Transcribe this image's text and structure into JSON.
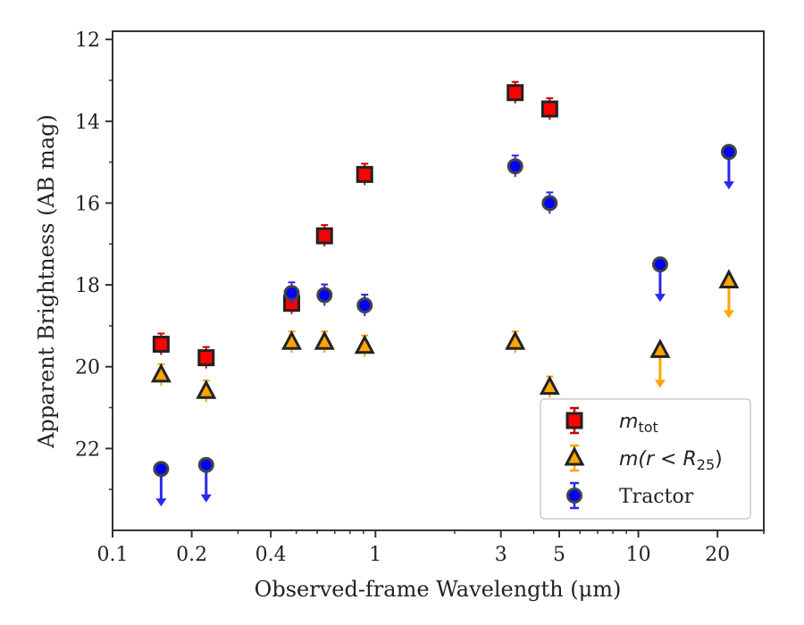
{
  "chart_data": {
    "type": "scatter",
    "xlabel": "Observed-frame Wavelength (μm)",
    "ylabel": "Apparent Brightness (AB mag)",
    "xscale": "log",
    "xlim": [
      0.1,
      30
    ],
    "ylim": [
      24,
      11.8
    ],
    "y_inverted": true,
    "x_ticks": [
      {
        "value": 0.1,
        "label": "0.1"
      },
      {
        "value": 0.2,
        "label": "0.2"
      },
      {
        "value": 0.4,
        "label": "0.4"
      },
      {
        "value": 1,
        "label": "1"
      },
      {
        "value": 3,
        "label": "3"
      },
      {
        "value": 5,
        "label": "5"
      },
      {
        "value": 10,
        "label": "10"
      },
      {
        "value": 20,
        "label": "20"
      }
    ],
    "y_ticks": [
      {
        "value": 12,
        "label": "12"
      },
      {
        "value": 14,
        "label": "14"
      },
      {
        "value": 16,
        "label": "16"
      },
      {
        "value": 18,
        "label": "18"
      },
      {
        "value": 20,
        "label": "20"
      },
      {
        "value": 22,
        "label": "22"
      }
    ],
    "grid": false,
    "legend_position": "lower-right",
    "series": [
      {
        "key": "mtot",
        "legend_main": "m",
        "legend_sub": "tot",
        "marker": "square",
        "face_color": "#ff0000",
        "edge_color": "#222222",
        "errbar_color": "#cc0000",
        "points": [
          {
            "x": 0.153,
            "y": 19.45,
            "upper_limit": false
          },
          {
            "x": 0.227,
            "y": 19.78,
            "upper_limit": false
          },
          {
            "x": 0.48,
            "y": 18.45,
            "upper_limit": false
          },
          {
            "x": 0.64,
            "y": 16.8,
            "upper_limit": false
          },
          {
            "x": 0.91,
            "y": 15.3,
            "upper_limit": false
          },
          {
            "x": 3.4,
            "y": 13.3,
            "upper_limit": false
          },
          {
            "x": 4.6,
            "y": 13.7,
            "upper_limit": false
          }
        ]
      },
      {
        "key": "mr25",
        "legend_text_math": "m(r < R",
        "legend_sub": "25",
        "legend_close": ")",
        "marker": "triangle",
        "face_color": "#ffa500",
        "edge_color": "#222222",
        "errbar_color": "#ffa500",
        "points": [
          {
            "x": 0.153,
            "y": 20.2,
            "upper_limit": false
          },
          {
            "x": 0.227,
            "y": 20.6,
            "upper_limit": false
          },
          {
            "x": 0.48,
            "y": 19.4,
            "upper_limit": false
          },
          {
            "x": 0.64,
            "y": 19.4,
            "upper_limit": false
          },
          {
            "x": 0.91,
            "y": 19.5,
            "upper_limit": false
          },
          {
            "x": 3.4,
            "y": 19.4,
            "upper_limit": false
          },
          {
            "x": 4.6,
            "y": 20.5,
            "upper_limit": false
          },
          {
            "x": 12.1,
            "y": 19.6,
            "upper_limit": true
          },
          {
            "x": 22.1,
            "y": 17.9,
            "upper_limit": true
          }
        ]
      },
      {
        "key": "tractor",
        "legend_text": "Tractor",
        "marker": "circle",
        "face_color": "#0000ff",
        "edge_color": "#444444",
        "errbar_color": "#2a2ae8",
        "points": [
          {
            "x": 0.153,
            "y": 22.5,
            "upper_limit": true
          },
          {
            "x": 0.227,
            "y": 22.4,
            "upper_limit": true
          },
          {
            "x": 0.48,
            "y": 18.2,
            "upper_limit": false
          },
          {
            "x": 0.64,
            "y": 18.25,
            "upper_limit": false
          },
          {
            "x": 0.91,
            "y": 18.5,
            "upper_limit": false
          },
          {
            "x": 3.4,
            "y": 15.1,
            "upper_limit": false
          },
          {
            "x": 4.6,
            "y": 16.0,
            "upper_limit": false
          },
          {
            "x": 12.1,
            "y": 17.5,
            "upper_limit": true
          },
          {
            "x": 22.1,
            "y": 14.75,
            "upper_limit": true
          }
        ]
      }
    ]
  }
}
